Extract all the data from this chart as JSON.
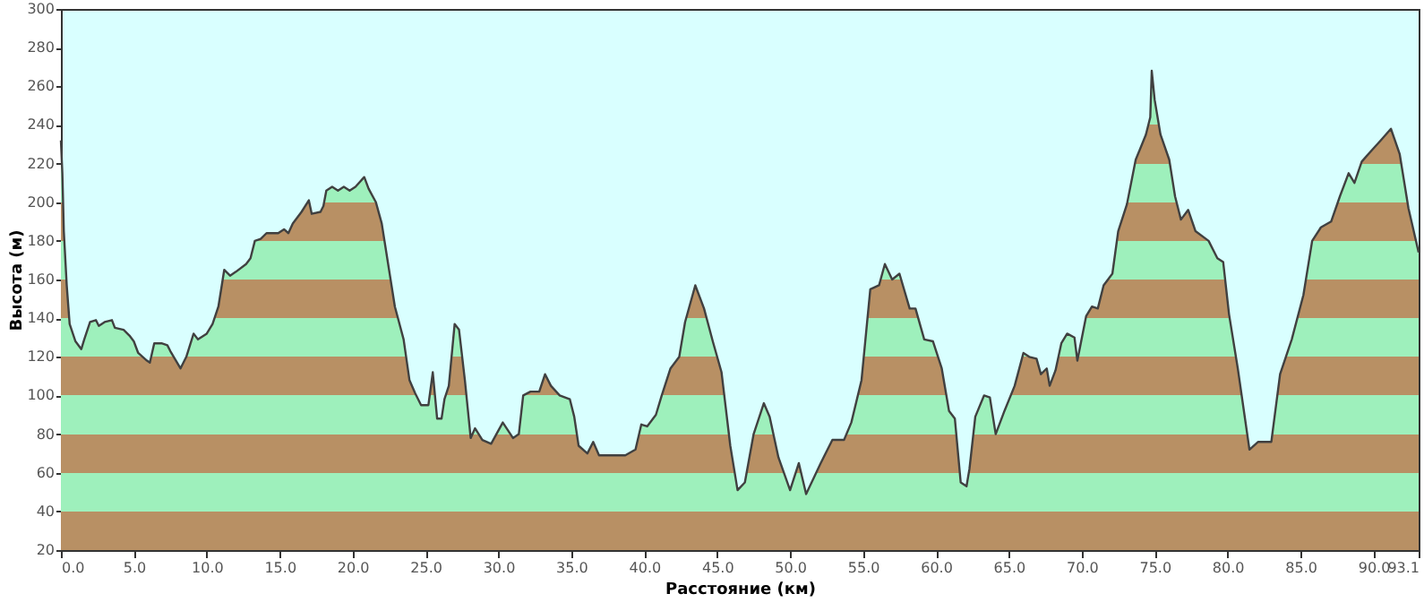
{
  "chart_data": {
    "type": "area",
    "xlabel": "Расстояние  (км)",
    "ylabel": "Высота (м)",
    "xlim": [
      0,
      93.1
    ],
    "ylim": [
      20,
      300
    ],
    "xticks": [
      {
        "value": 0,
        "label": "0.0"
      },
      {
        "value": 5,
        "label": "5.0"
      },
      {
        "value": 10,
        "label": "10.0"
      },
      {
        "value": 15,
        "label": "15.0"
      },
      {
        "value": 20,
        "label": "20.0"
      },
      {
        "value": 25,
        "label": "25.0"
      },
      {
        "value": 30,
        "label": "30.0"
      },
      {
        "value": 35,
        "label": "35.0"
      },
      {
        "value": 40,
        "label": "40.0"
      },
      {
        "value": 45,
        "label": "45.0"
      },
      {
        "value": 50,
        "label": "50.0"
      },
      {
        "value": 55,
        "label": "55.0"
      },
      {
        "value": 60,
        "label": "60.0"
      },
      {
        "value": 65,
        "label": "65.0"
      },
      {
        "value": 70,
        "label": "70.0"
      },
      {
        "value": 75,
        "label": "75.0"
      },
      {
        "value": 80,
        "label": "80.0"
      },
      {
        "value": 85,
        "label": "85.0"
      },
      {
        "value": 90,
        "label": "90.0"
      },
      93.1
    ],
    "yticks": [
      20,
      40,
      60,
      80,
      100,
      120,
      140,
      160,
      180,
      200,
      220,
      240,
      260,
      280,
      300
    ],
    "grid": false,
    "series": [
      {
        "color": "#404040",
        "x": [
          0,
          0.1,
          0.2,
          0.4,
          0.6,
          1.0,
          1.4,
          1.6,
          2.0,
          2.4,
          2.6,
          3.0,
          3.5,
          3.7,
          4.3,
          4.7,
          5.0,
          5.3,
          5.9,
          6.1,
          6.4,
          6.9,
          7.3,
          7.5,
          8.2,
          8.6,
          9.1,
          9.4,
          10.0,
          10.4,
          10.8,
          11.2,
          11.6,
          12.0,
          12.7,
          13.0,
          13.3,
          13.7,
          14.1,
          14.9,
          15.3,
          15.6,
          15.9,
          16.5,
          17.0,
          17.2,
          17.8,
          18.0,
          18.2,
          18.6,
          19.0,
          19.4,
          19.8,
          20.2,
          20.8,
          21.1,
          21.6,
          22.0,
          22.9,
          23.5,
          23.9,
          24.3,
          24.7,
          25.2,
          25.5,
          25.8,
          26.1,
          26.3,
          26.6,
          27.0,
          27.3,
          27.7,
          28.1,
          28.4,
          28.9,
          29.5,
          30.3,
          31.0,
          31.4,
          31.7,
          32.2,
          32.8,
          33.2,
          33.6,
          34.2,
          34.9,
          35.2,
          35.5,
          36.1,
          36.5,
          36.9,
          37.7,
          38.7,
          39.4,
          39.8,
          40.2,
          40.8,
          41.2,
          41.8,
          42.4,
          42.8,
          43.5,
          44.1,
          44.7,
          45.3,
          45.9,
          46.4,
          46.9,
          47.5,
          48.2,
          48.6,
          49.2,
          50.0,
          50.6,
          51.1,
          52.1,
          52.9,
          53.7,
          54.2,
          54.9,
          55.5,
          56.1,
          56.5,
          57.0,
          57.5,
          58.2,
          58.6,
          59.2,
          59.8,
          60.4,
          60.9,
          61.3,
          61.7,
          62.1,
          62.3,
          62.7,
          63.3,
          63.7,
          64.1,
          64.7,
          65.4,
          66.0,
          66.4,
          66.9,
          67.2,
          67.6,
          67.8,
          68.2,
          68.6,
          69.0,
          69.5,
          69.7,
          70.3,
          70.7,
          71.1,
          71.5,
          72.1,
          72.5,
          73.1,
          73.7,
          74.4,
          74.7,
          74.8,
          75.0,
          75.4,
          76.0,
          76.4,
          76.8,
          77.3,
          77.8,
          78.7,
          79.3,
          79.7,
          80.1,
          80.7,
          81.5,
          82.1,
          83.0,
          83.6,
          84.4,
          85.2,
          85.8,
          86.4,
          87.1,
          87.7,
          88.3,
          88.7,
          89.2,
          89.9,
          90.5,
          91.2,
          91.8,
          92.4,
          93.1
        ],
        "values": [
          232,
          215,
          185,
          157,
          137,
          128,
          124,
          129,
          138,
          139,
          136,
          138,
          139,
          135,
          134,
          131,
          128,
          122,
          118,
          117,
          127,
          127,
          126,
          123,
          114,
          120,
          132,
          129,
          132,
          137,
          146,
          165,
          162,
          164,
          168,
          171,
          180,
          181,
          184,
          184,
          186,
          184,
          189,
          195,
          201,
          194,
          195,
          198,
          206,
          208,
          206,
          208,
          206,
          208,
          213,
          207,
          200,
          189,
          146,
          129,
          108,
          101,
          95,
          95,
          112,
          88,
          88,
          98,
          105,
          137,
          134,
          108,
          78,
          83,
          77,
          75,
          86,
          78,
          80,
          100,
          102,
          102,
          111,
          105,
          100,
          98,
          89,
          74,
          70,
          76,
          69,
          69,
          69,
          72,
          85,
          84,
          90,
          100,
          114,
          120,
          138,
          157,
          145,
          128,
          112,
          74,
          51,
          55,
          80,
          96,
          89,
          68,
          51,
          65,
          49,
          65,
          77,
          77,
          86,
          108,
          155,
          157,
          168,
          160,
          163,
          145,
          145,
          129,
          128,
          114,
          92,
          88,
          55,
          53,
          62,
          89,
          100,
          99,
          80,
          92,
          105,
          122,
          120,
          119,
          111,
          114,
          105,
          113,
          127,
          132,
          130,
          118,
          141,
          146,
          145,
          157,
          163,
          185,
          199,
          222,
          235,
          244,
          268,
          253,
          235,
          222,
          203,
          191,
          196,
          185,
          180,
          171,
          169,
          142,
          114,
          72,
          76,
          76,
          111,
          129,
          152,
          180,
          187,
          190,
          203,
          215,
          210,
          221,
          227,
          232,
          238,
          225,
          197,
          174
        ]
      }
    ]
  }
}
